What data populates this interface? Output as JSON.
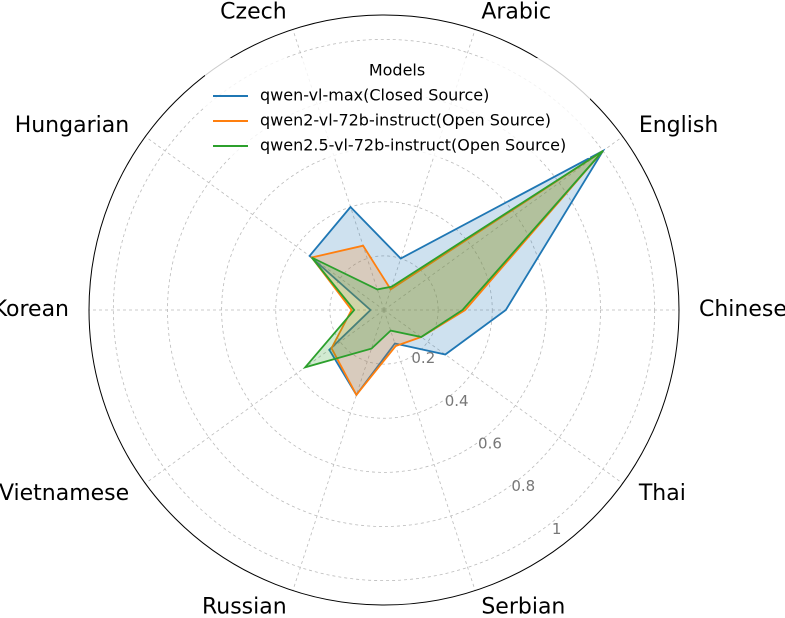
{
  "chart_data": {
    "type": "radar",
    "categories": [
      "Chinese",
      "English",
      "Arabic",
      "Czech",
      "Hungarian",
      "Korean",
      "Vietnamese",
      "Russian",
      "Serbian",
      "Thai"
    ],
    "series": [
      {
        "name": "qwen-vl-max(Closed Source)",
        "color": "#1f77b4",
        "values": [
          0.45,
          1.0,
          0.2,
          0.4,
          0.34,
          0.05,
          0.25,
          0.33,
          0.13,
          0.28
        ]
      },
      {
        "name": "qwen2-vl-72b-instruct(Open Source)",
        "color": "#ff7f0e",
        "values": [
          0.3,
          1.0,
          0.08,
          0.25,
          0.33,
          0.12,
          0.24,
          0.33,
          0.14,
          0.17
        ]
      },
      {
        "name": "qwen2.5-vl-72b-instruct(Open Source)",
        "color": "#2ca02c",
        "values": [
          0.29,
          1.0,
          0.09,
          0.08,
          0.33,
          0.11,
          0.36,
          0.15,
          0.08,
          0.17
        ]
      }
    ],
    "ylim": [
      0,
      1.09
    ],
    "yticks": [
      0.2,
      0.4,
      0.6,
      0.8,
      1.0
    ],
    "legend_title": "Models",
    "grid": true
  }
}
